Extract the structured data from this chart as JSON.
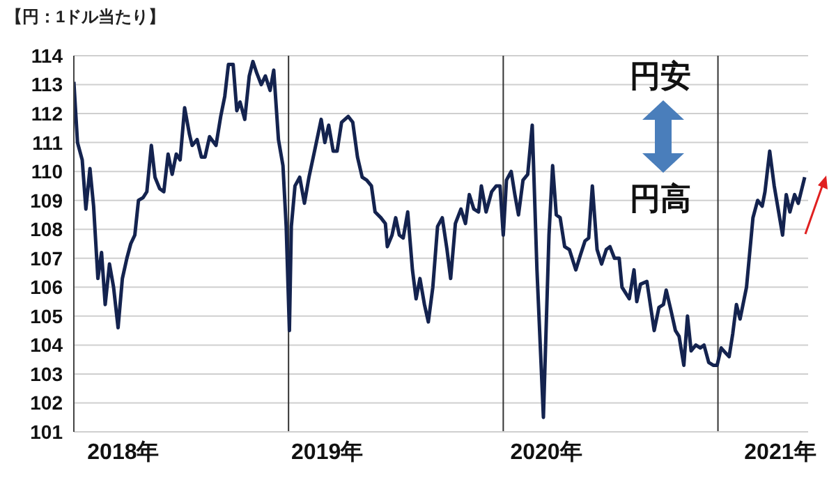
{
  "chart_data": {
    "type": "line",
    "title": "【円：1ドル当たり】",
    "x": [
      2018.0,
      2018.017,
      2018.039,
      2018.056,
      2018.075,
      2018.092,
      2018.112,
      2018.129,
      2018.146,
      2018.166,
      2018.185,
      2018.206,
      2018.226,
      2018.247,
      2018.265,
      2018.284,
      2018.301,
      2018.323,
      2018.34,
      2018.361,
      2018.378,
      2018.4,
      2018.419,
      2018.439,
      2018.458,
      2018.477,
      2018.495,
      2018.516,
      2018.538,
      2018.551,
      2018.574,
      2018.594,
      2018.611,
      2018.632,
      2018.662,
      2018.684,
      2018.703,
      2018.72,
      2018.742,
      2018.759,
      2018.774,
      2018.796,
      2018.817,
      2018.834,
      2018.852,
      2018.873,
      2018.892,
      2018.914,
      2018.931,
      2018.953,
      2018.974,
      2018.989,
      2019.004,
      2019.013,
      2019.03,
      2019.052,
      2019.074,
      2019.095,
      2019.121,
      2019.152,
      2019.169,
      2019.187,
      2019.208,
      2019.226,
      2019.247,
      2019.278,
      2019.299,
      2019.321,
      2019.343,
      2019.364,
      2019.386,
      2019.403,
      2019.43,
      2019.451,
      2019.46,
      2019.482,
      2019.499,
      2019.516,
      2019.534,
      2019.555,
      2019.577,
      2019.594,
      2019.612,
      2019.633,
      2019.651,
      2019.672,
      2019.694,
      2019.716,
      2019.738,
      2019.755,
      2019.777,
      2019.803,
      2019.824,
      2019.842,
      2019.863,
      2019.885,
      2019.898,
      2019.92,
      2019.946,
      2019.967,
      2019.985,
      2020.0,
      2020.015,
      2020.037,
      2020.054,
      2020.071,
      2020.092,
      2020.114,
      2020.135,
      2020.157,
      2020.187,
      2020.213,
      2020.23,
      2020.247,
      2020.265,
      2020.286,
      2020.308,
      2020.338,
      2020.359,
      2020.381,
      2020.398,
      2020.415,
      2020.437,
      2020.458,
      2020.48,
      2020.497,
      2020.518,
      2020.54,
      2020.553,
      2020.587,
      2020.609,
      2020.622,
      2020.639,
      2020.669,
      2020.703,
      2020.725,
      2020.746,
      2020.759,
      2020.781,
      2020.802,
      2020.819,
      2020.841,
      2020.858,
      2020.875,
      2020.897,
      2020.918,
      2020.935,
      2020.957,
      2020.978,
      2020.996,
      2021.015,
      2021.039,
      2021.052,
      2021.069,
      2021.086,
      2021.103,
      2021.133,
      2021.163,
      2021.185,
      2021.206,
      2021.219,
      2021.241,
      2021.262,
      2021.301,
      2021.318,
      2021.335,
      2021.357,
      2021.374,
      2021.404
    ],
    "series": [
      {
        "color": "#14234f",
        "values": [
          113.1,
          111.0,
          110.4,
          108.7,
          110.1,
          108.8,
          106.3,
          107.2,
          105.4,
          106.8,
          106.0,
          104.6,
          106.3,
          107.0,
          107.5,
          107.8,
          109.0,
          109.1,
          109.3,
          110.9,
          109.8,
          109.4,
          109.3,
          110.6,
          109.9,
          110.6,
          110.4,
          112.2,
          111.3,
          110.9,
          111.1,
          110.5,
          110.5,
          111.2,
          110.9,
          111.9,
          112.6,
          113.7,
          113.7,
          112.1,
          112.4,
          111.8,
          113.3,
          113.8,
          113.4,
          113.0,
          113.3,
          112.8,
          113.5,
          111.1,
          110.2,
          108.1,
          104.5,
          108.1,
          109.5,
          109.8,
          108.9,
          109.8,
          110.7,
          111.8,
          111.0,
          111.6,
          110.7,
          110.7,
          111.7,
          111.9,
          111.7,
          110.5,
          109.8,
          109.7,
          109.5,
          108.6,
          108.4,
          108.2,
          107.4,
          107.8,
          108.4,
          107.8,
          107.7,
          108.6,
          106.6,
          105.6,
          106.3,
          105.4,
          104.8,
          106.0,
          108.1,
          108.4,
          107.3,
          106.3,
          108.2,
          108.7,
          108.2,
          109.2,
          108.7,
          108.6,
          109.5,
          108.6,
          109.3,
          109.5,
          109.5,
          107.8,
          109.7,
          110.0,
          109.2,
          108.5,
          109.7,
          109.9,
          111.6,
          106.6,
          101.5,
          107.8,
          110.2,
          108.5,
          108.4,
          107.4,
          107.3,
          106.6,
          107.1,
          107.6,
          107.7,
          109.5,
          107.3,
          106.8,
          107.3,
          107.4,
          107.0,
          107.0,
          106.0,
          105.6,
          106.6,
          105.5,
          106.1,
          106.2,
          104.5,
          105.3,
          105.4,
          105.9,
          105.2,
          104.5,
          104.3,
          103.3,
          105.0,
          103.8,
          104.0,
          103.9,
          104.0,
          103.4,
          103.3,
          103.3,
          103.9,
          103.7,
          103.6,
          104.4,
          105.4,
          104.9,
          106.0,
          108.4,
          109.0,
          108.8,
          109.3,
          110.7,
          109.5,
          107.8,
          109.2,
          108.6,
          109.2,
          108.9,
          109.8
        ]
      }
    ],
    "xlim": [
      2018,
      2021.42
    ],
    "xticks": [
      {
        "value": 2018.23,
        "label": "2018年"
      },
      {
        "value": 2019.18,
        "label": "2019年"
      },
      {
        "value": 2020.2,
        "label": "2020年"
      },
      {
        "value": 2021.29,
        "label": "2021年"
      }
    ],
    "ylim": [
      101,
      114
    ],
    "yticks": [
      101,
      102,
      103,
      104,
      105,
      106,
      107,
      108,
      109,
      110,
      111,
      112,
      113,
      114
    ],
    "grid": "y",
    "ref_lines": [
      {
        "axis": "x",
        "value": 2019,
        "color": "#333333"
      },
      {
        "axis": "x",
        "value": 2020,
        "color": "#333333"
      },
      {
        "axis": "x",
        "value": 2021,
        "color": "#333333"
      }
    ],
    "annotations": [
      "円安",
      "円高"
    ]
  }
}
